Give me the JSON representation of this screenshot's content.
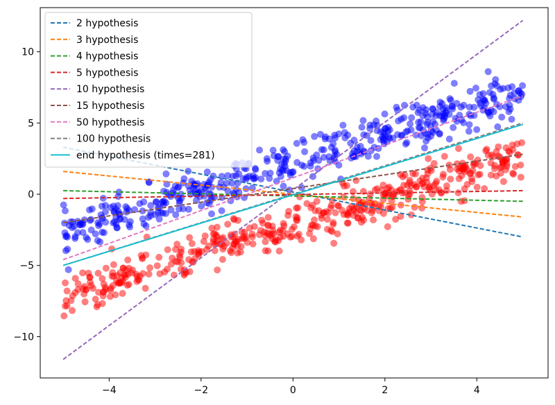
{
  "chart_data": {
    "type": "scatter",
    "title": "",
    "xlabel": "",
    "ylabel": "",
    "xlim": [
      -5.5,
      5.55
    ],
    "ylim": [
      -12.9,
      13.1
    ],
    "xticks": [
      -4,
      -2,
      0,
      2,
      4
    ],
    "yticks": [
      -10,
      -5,
      0,
      5,
      10
    ],
    "grid": false,
    "legend_position": "top-left",
    "scatter_series": [
      {
        "name": "",
        "color": "#0000ff",
        "offset": 2.2,
        "slope": 1.0,
        "n": 480
      },
      {
        "name": "",
        "color": "#ff0000",
        "offset": -2.2,
        "slope": 1.0,
        "n": 480
      }
    ],
    "series": [
      {
        "name": "2 hypothesis",
        "color": "#1f77b4",
        "dash": true,
        "x": [
          -5,
          5
        ],
        "y": [
          3.3,
          -3.0
        ]
      },
      {
        "name": "3 hypothesis",
        "color": "#ff7f0e",
        "dash": true,
        "x": [
          -5,
          5
        ],
        "y": [
          1.6,
          -1.6
        ]
      },
      {
        "name": "4 hypothesis",
        "color": "#2ca02c",
        "dash": true,
        "x": [
          -5,
          5
        ],
        "y": [
          0.25,
          -0.5
        ]
      },
      {
        "name": "5 hypothesis",
        "color": "#d62728",
        "dash": true,
        "x": [
          -5,
          5
        ],
        "y": [
          -0.3,
          0.25
        ]
      },
      {
        "name": "10 hypothesis",
        "color": "#9467bd",
        "dash": true,
        "x": [
          -5,
          5
        ],
        "y": [
          -11.6,
          12.2
        ]
      },
      {
        "name": "15 hypothesis",
        "color": "#8c564b",
        "dash": true,
        "x": [
          -5,
          5
        ],
        "y": [
          -2.0,
          2.8
        ]
      },
      {
        "name": "50 hypothesis",
        "color": "#e377c2",
        "dash": true,
        "x": [
          -5,
          5
        ],
        "y": [
          -4.6,
          6.9
        ]
      },
      {
        "name": "100 hypothesis",
        "color": "#7f7f7f",
        "dash": true,
        "x": [
          -5,
          5
        ],
        "y": [
          -5.0,
          5.0
        ]
      },
      {
        "name": "end hypothesis (times=281)",
        "color": "#17becf",
        "dash": false,
        "x": [
          -5,
          5
        ],
        "y": [
          -5.0,
          4.9
        ]
      }
    ]
  }
}
